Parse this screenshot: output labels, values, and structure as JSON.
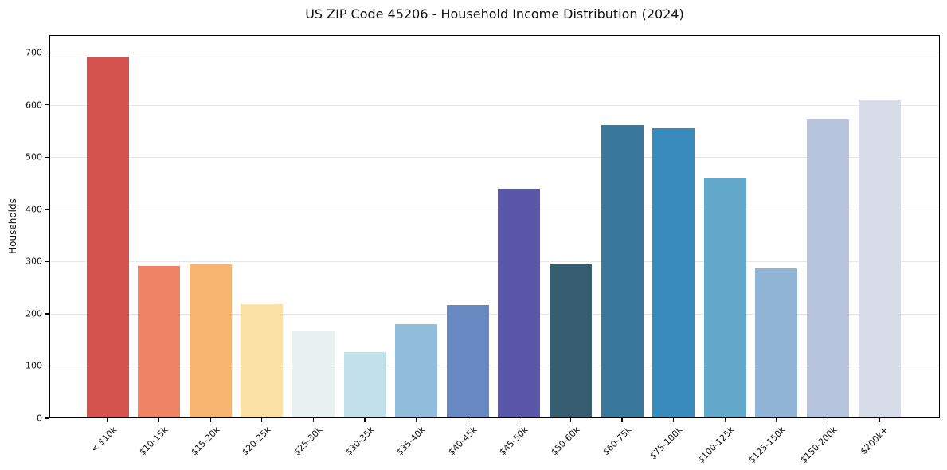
{
  "chart_data": {
    "type": "bar",
    "title": "US ZIP Code 45206 - Household Income Distribution (2024)",
    "xlabel": "",
    "ylabel": "Households",
    "ylim": [
      0,
      734
    ],
    "yticks": [
      0,
      100,
      200,
      300,
      400,
      500,
      600,
      700
    ],
    "grid": "horizontal",
    "legend": "none",
    "categories": [
      "< $10k",
      "$10-15k",
      "$15-20k",
      "$20-25k",
      "$25-30k",
      "$30-35k",
      "$35-40k",
      "$40-45k",
      "$45-50k",
      "$50-60k",
      "$60-75k",
      "$75-100k",
      "$100-125k",
      "$125-150k",
      "$150-200k",
      "$200k+"
    ],
    "values": [
      693,
      292,
      295,
      220,
      166,
      127,
      180,
      216,
      439,
      294,
      562,
      556,
      460,
      287,
      573,
      610
    ],
    "bar_colors": [
      "#d4534e",
      "#ee8465",
      "#f8b471",
      "#fbe2a4",
      "#e7f2f0",
      "#c2e0e9",
      "#92bcdb",
      "#6788c1",
      "#5a57ab",
      "#365d70",
      "#38789d",
      "#3a8bbd",
      "#61a8ca",
      "#90b4d6",
      "#b6c4dd",
      "#d8dbe8"
    ],
    "axis_color": "#000000",
    "gridline_color": "#e7e7e7",
    "background_color": "#ffffff"
  }
}
